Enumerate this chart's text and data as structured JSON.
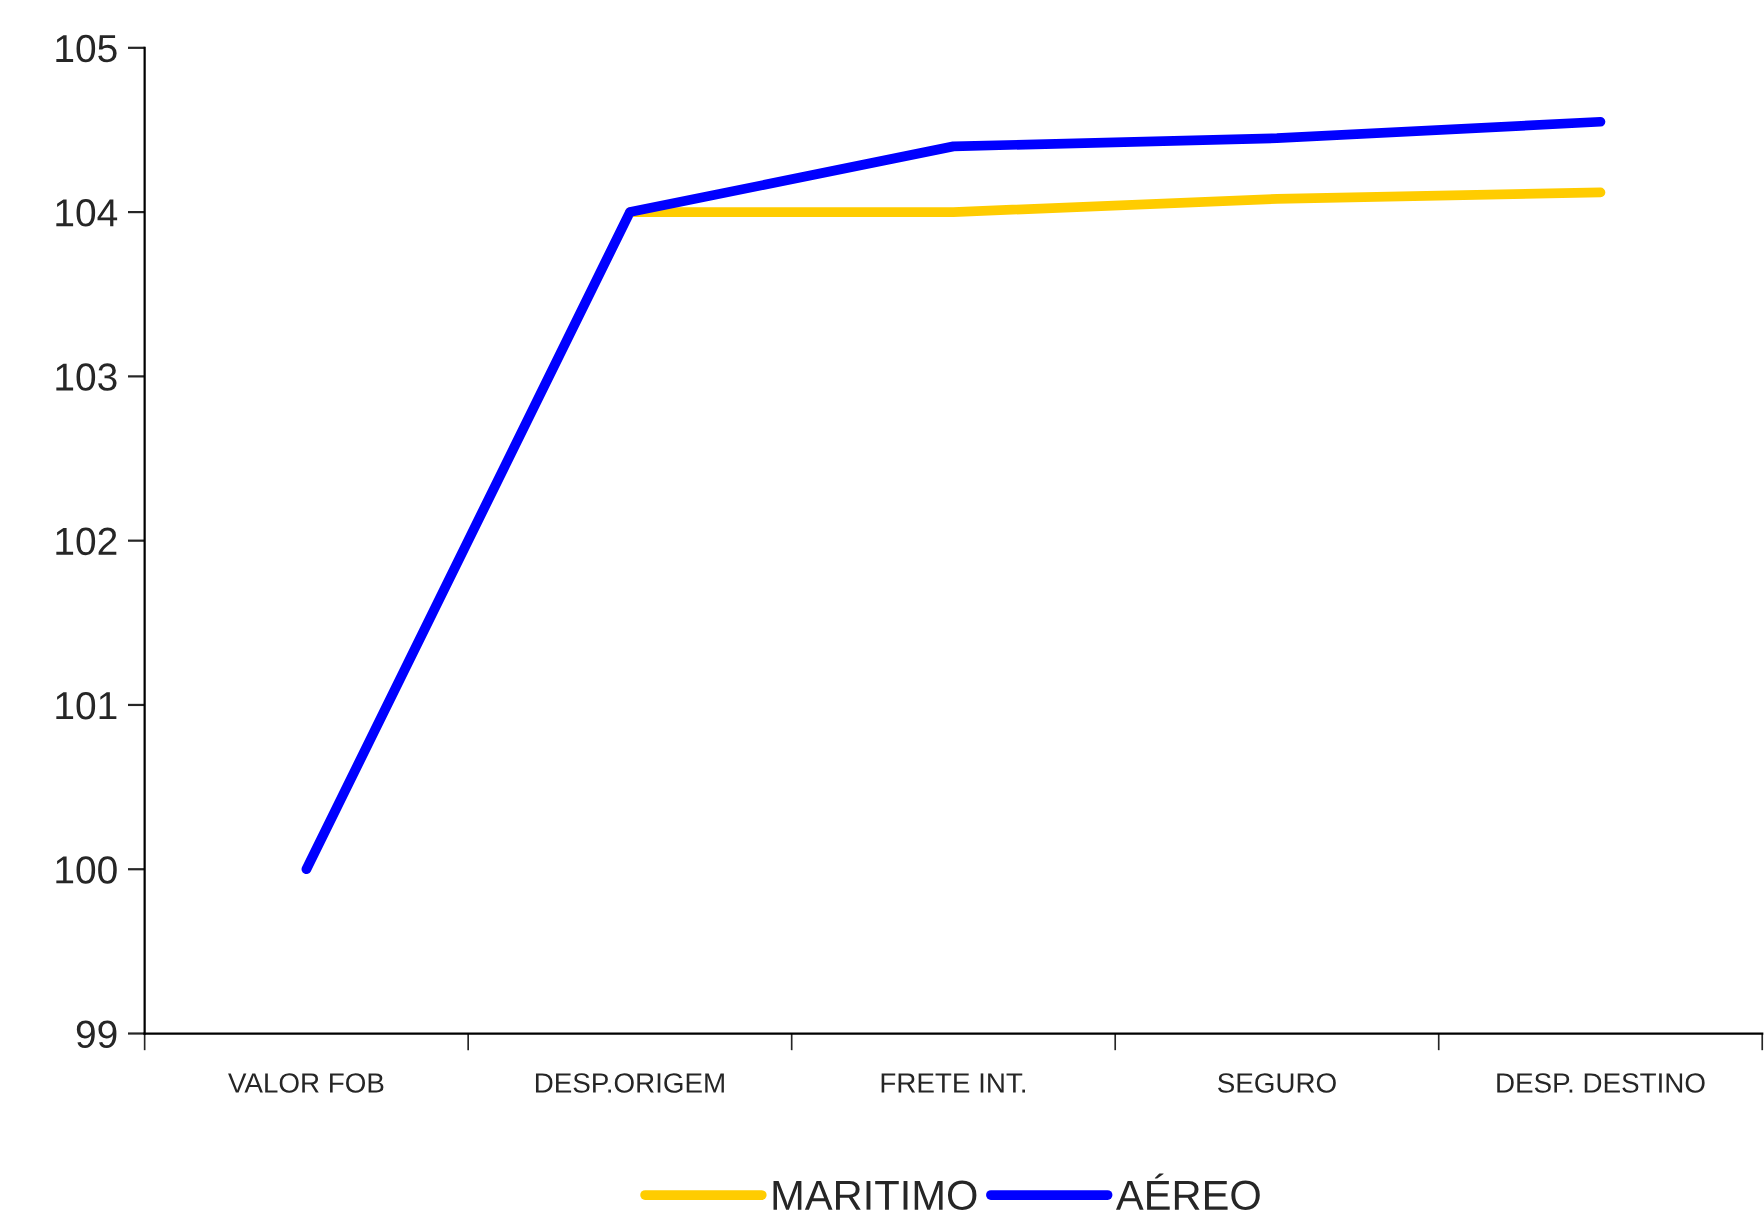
{
  "chart_data": {
    "type": "line",
    "categories": [
      "VALOR FOB",
      "DESP.ORIGEM",
      "FRETE INT.",
      "SEGURO",
      "DESP. DESTINO"
    ],
    "series": [
      {
        "name": "MARITIMO",
        "color": "#ffcc00",
        "values": [
          null,
          104.0,
          104.0,
          104.08,
          104.12
        ]
      },
      {
        "name": "AÉREO",
        "color": "#0000ff",
        "values": [
          100,
          104.0,
          104.4,
          104.45,
          104.55
        ]
      }
    ],
    "ylim": [
      99,
      105
    ],
    "yticks": [
      99,
      100,
      101,
      102,
      103,
      104,
      105
    ],
    "grid": false,
    "legend": "bottom",
    "marker": "none",
    "line_style": "solid"
  }
}
